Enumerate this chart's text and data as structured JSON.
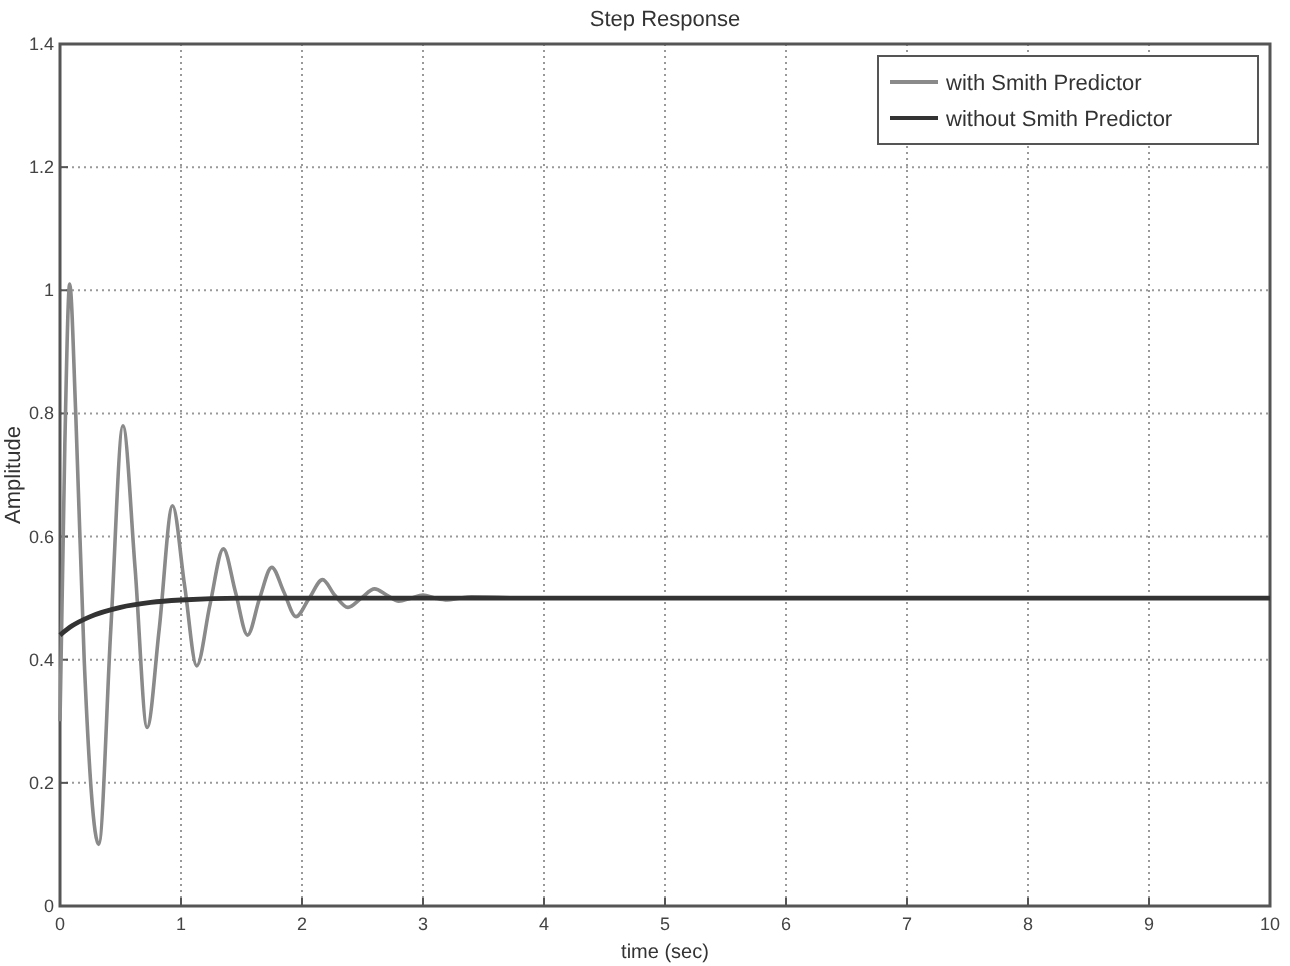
{
  "chart_data": {
    "type": "line",
    "title": "Step Response",
    "xlabel": "time (sec)",
    "ylabel": "Amplitude",
    "xlim": [
      0,
      10
    ],
    "xticks": [
      0,
      1,
      2,
      3,
      4,
      5,
      6,
      7,
      8,
      9,
      10
    ],
    "ylim": [
      0,
      1.4
    ],
    "yticks": [
      0,
      0.2,
      0.4,
      0.6,
      0.8,
      1,
      1.2,
      1.4
    ],
    "grid": true,
    "legend": "top right",
    "series": [
      {
        "name": "with Smith Predictor",
        "color": "#8a8a8a",
        "x": [
          0,
          0.04,
          0.08,
          0.13,
          0.2,
          0.32,
          0.42,
          0.52,
          0.62,
          0.72,
          0.82,
          0.93,
          1.03,
          1.13,
          1.24,
          1.35,
          1.45,
          1.55,
          1.65,
          1.75,
          1.85,
          1.95,
          2.06,
          2.17,
          2.27,
          2.38,
          2.49,
          2.6,
          2.7,
          2.8,
          2.9,
          3.0,
          3.1,
          3.2,
          3.3,
          3.4,
          3.8
        ],
        "values": [
          0.3,
          0.75,
          1.01,
          0.8,
          0.4,
          0.1,
          0.45,
          0.78,
          0.55,
          0.29,
          0.45,
          0.65,
          0.52,
          0.39,
          0.49,
          0.58,
          0.51,
          0.44,
          0.5,
          0.55,
          0.51,
          0.47,
          0.5,
          0.53,
          0.505,
          0.485,
          0.5,
          0.515,
          0.505,
          0.495,
          0.5,
          0.505,
          0.5,
          0.497,
          0.5,
          0.502,
          0.5
        ]
      },
      {
        "name": "without Smith Predictor",
        "color": "#333333",
        "x": [
          0,
          0.1,
          0.25,
          0.5,
          0.75,
          1,
          1.5,
          2,
          10
        ],
        "values": [
          0.44,
          0.455,
          0.47,
          0.485,
          0.493,
          0.497,
          0.5,
          0.5,
          0.5
        ]
      }
    ]
  }
}
